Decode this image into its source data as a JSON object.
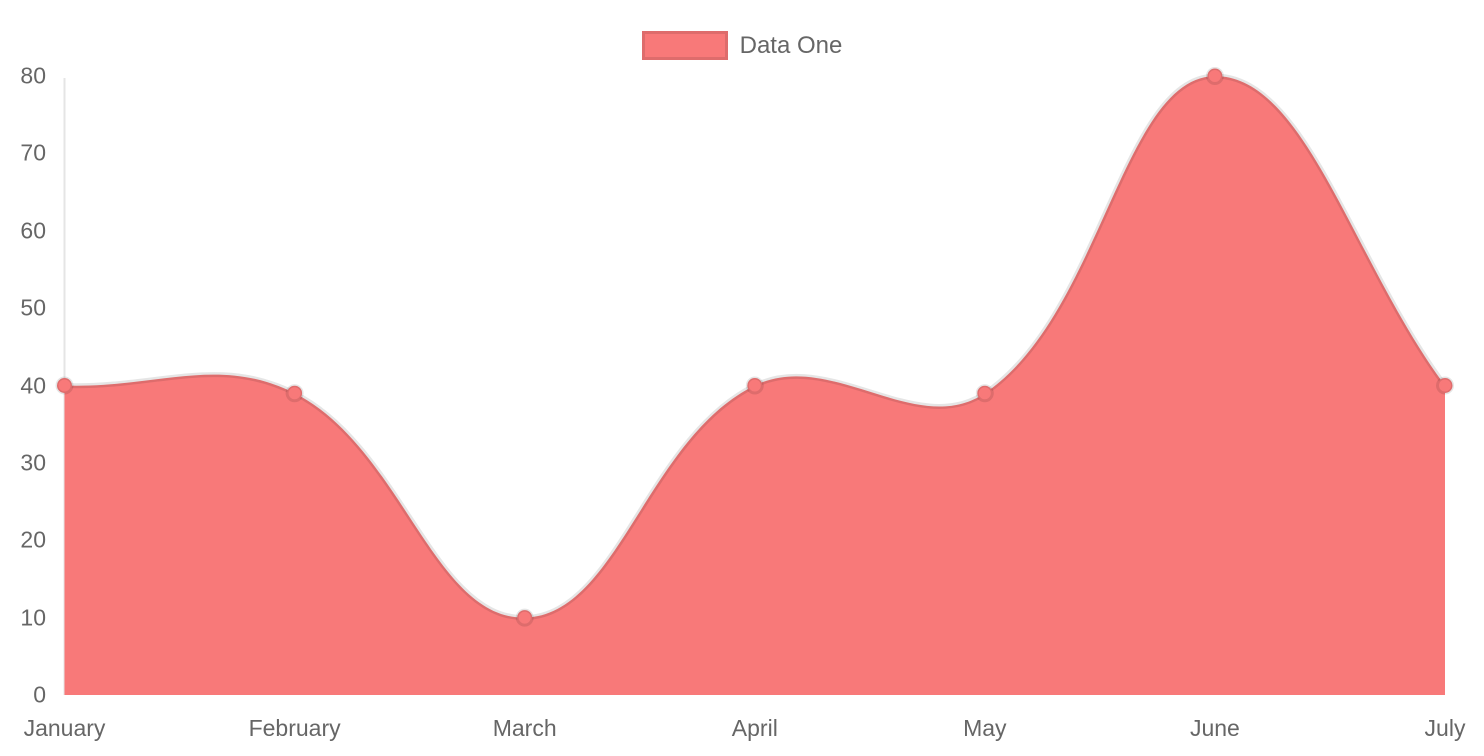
{
  "legend": {
    "position": "top",
    "items": [
      {
        "label": "Data One",
        "swatch_color": "#f87979"
      }
    ]
  },
  "chart_data": {
    "type": "area",
    "title": "",
    "xlabel": "",
    "ylabel": "",
    "categories": [
      "January",
      "February",
      "March",
      "April",
      "May",
      "June",
      "July"
    ],
    "series": [
      {
        "name": "Data One",
        "values": [
          40,
          39,
          10,
          40,
          39,
          80,
          40
        ]
      }
    ],
    "ylim": [
      0,
      80
    ],
    "y_ticks": [
      0,
      10,
      20,
      30,
      40,
      50,
      60,
      70,
      80
    ],
    "grid": false,
    "legend_position": "top",
    "line_tension": 0.4,
    "colors": {
      "area_fill": "#f87979",
      "line_stroke": "rgba(0,0,0,0.10)",
      "point_fill": "#f87979",
      "point_stroke": "rgba(0,0,0,0.10)",
      "axis_line": "rgba(0,0,0,0.10)",
      "tick_text": "#666666",
      "legend_text": "#666666",
      "background": "#ffffff"
    }
  }
}
